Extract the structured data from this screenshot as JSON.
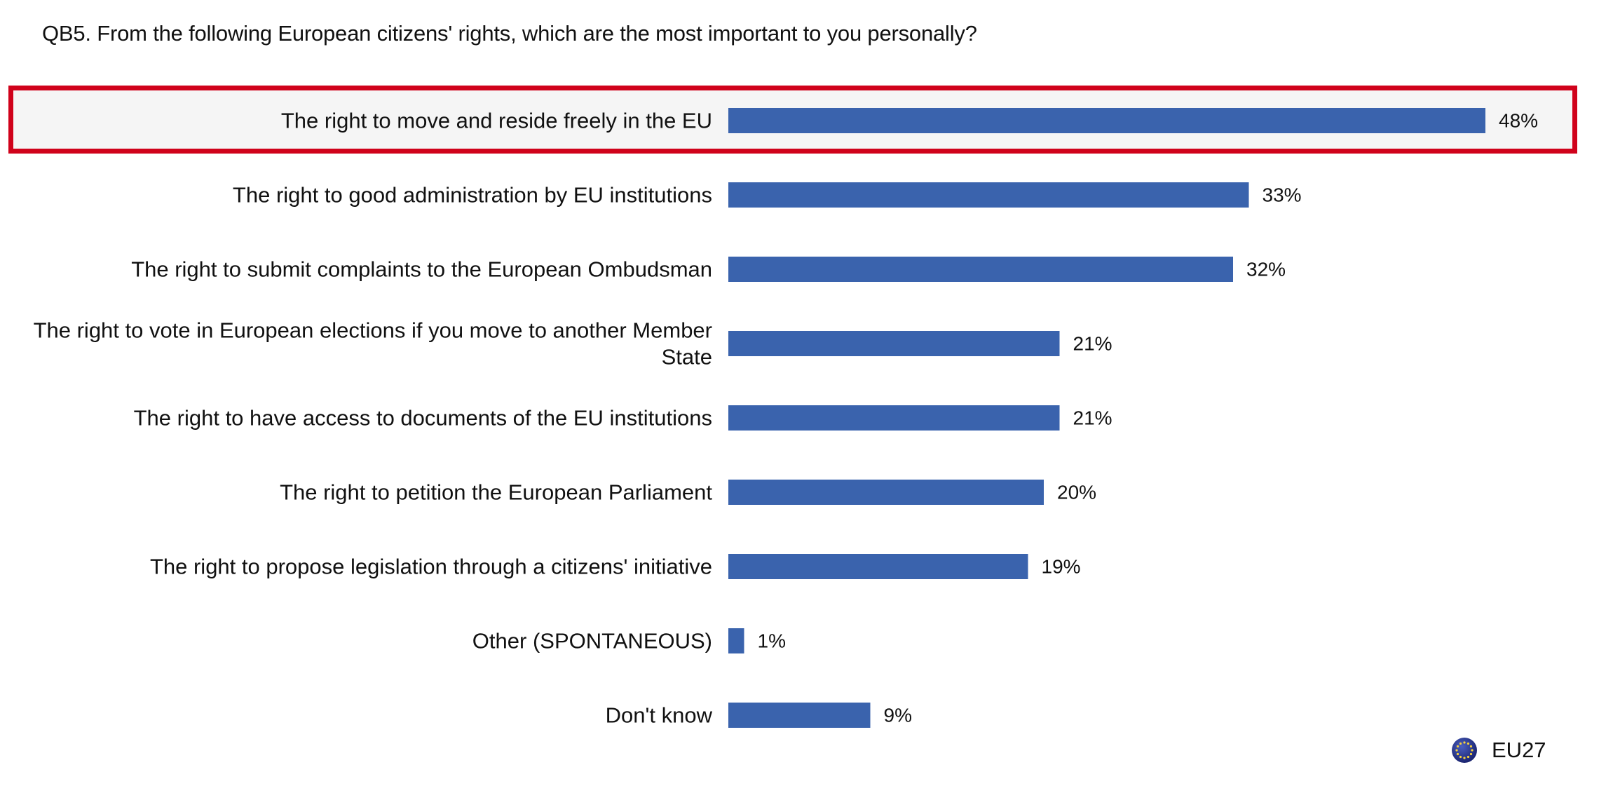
{
  "chart_data": {
    "type": "bar",
    "orientation": "horizontal",
    "title": "QB5. From the following European citizens' rights, which are the most important to you personally?",
    "categories": [
      [
        "The right to move and reside freely in the EU"
      ],
      [
        "The right to good administration by EU institutions"
      ],
      [
        "The right to submit complaints to the European Ombudsman"
      ],
      [
        "The right to vote in European elections if you move to another Member",
        "State"
      ],
      [
        "The right to have access to documents of the EU institutions"
      ],
      [
        "The right to petition the European Parliament"
      ],
      [
        "The right to propose legislation through a citizens' initiative"
      ],
      [
        "Other (SPONTANEOUS)"
      ],
      [
        "Don't know"
      ]
    ],
    "series": [
      {
        "name": "EU27",
        "values": [
          48,
          33,
          32,
          21,
          21,
          20,
          19,
          1,
          9
        ],
        "value_labels": [
          "48%",
          "33%",
          "32%",
          "21%",
          "21%",
          "20%",
          "19%",
          "1%",
          "9%"
        ]
      }
    ],
    "highlighted_category": "The right to move and reside freely in the EU",
    "xlim": [
      0,
      100
    ],
    "grid": false,
    "legend_position": "bottom-right",
    "colors": {
      "bar": "#3a63ad",
      "highlight_border": "#d0021b",
      "highlight_fill": "#f5f5f5"
    }
  },
  "legend": {
    "label": "EU27",
    "icon": "eu-flag-icon"
  }
}
